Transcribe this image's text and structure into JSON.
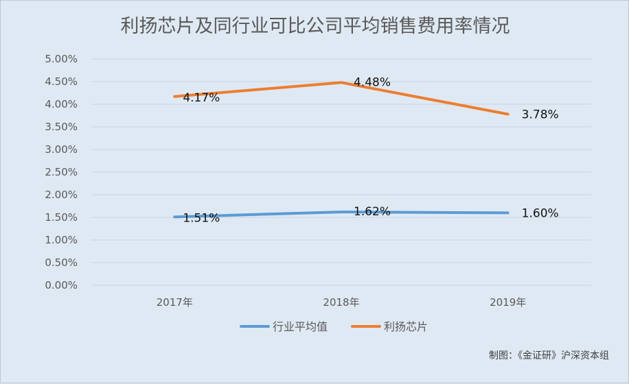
{
  "chart_data": {
    "type": "line",
    "title": "利扬芯片及同行业可比公司平均销售费用率情况",
    "categories": [
      "2017年",
      "2018年",
      "2019年"
    ],
    "series": [
      {
        "name": "行业平均值",
        "color": "#5b9bd5",
        "values": [
          1.51,
          1.62,
          1.6
        ],
        "labels": [
          "1.51%",
          "1.62%",
          "1.60%"
        ]
      },
      {
        "name": "利扬芯片",
        "color": "#ed7d31",
        "values": [
          4.17,
          4.48,
          3.78
        ],
        "labels": [
          "4.17%",
          "4.48%",
          "3.78%"
        ]
      }
    ],
    "y_ticks": [
      "0.00%",
      "0.50%",
      "1.00%",
      "1.50%",
      "2.00%",
      "2.50%",
      "3.00%",
      "3.50%",
      "4.00%",
      "4.50%",
      "5.00%"
    ],
    "ylim": [
      0,
      5
    ],
    "grid": true,
    "legend_position": "bottom",
    "credit": "制图：《金证研》沪深资本组"
  }
}
